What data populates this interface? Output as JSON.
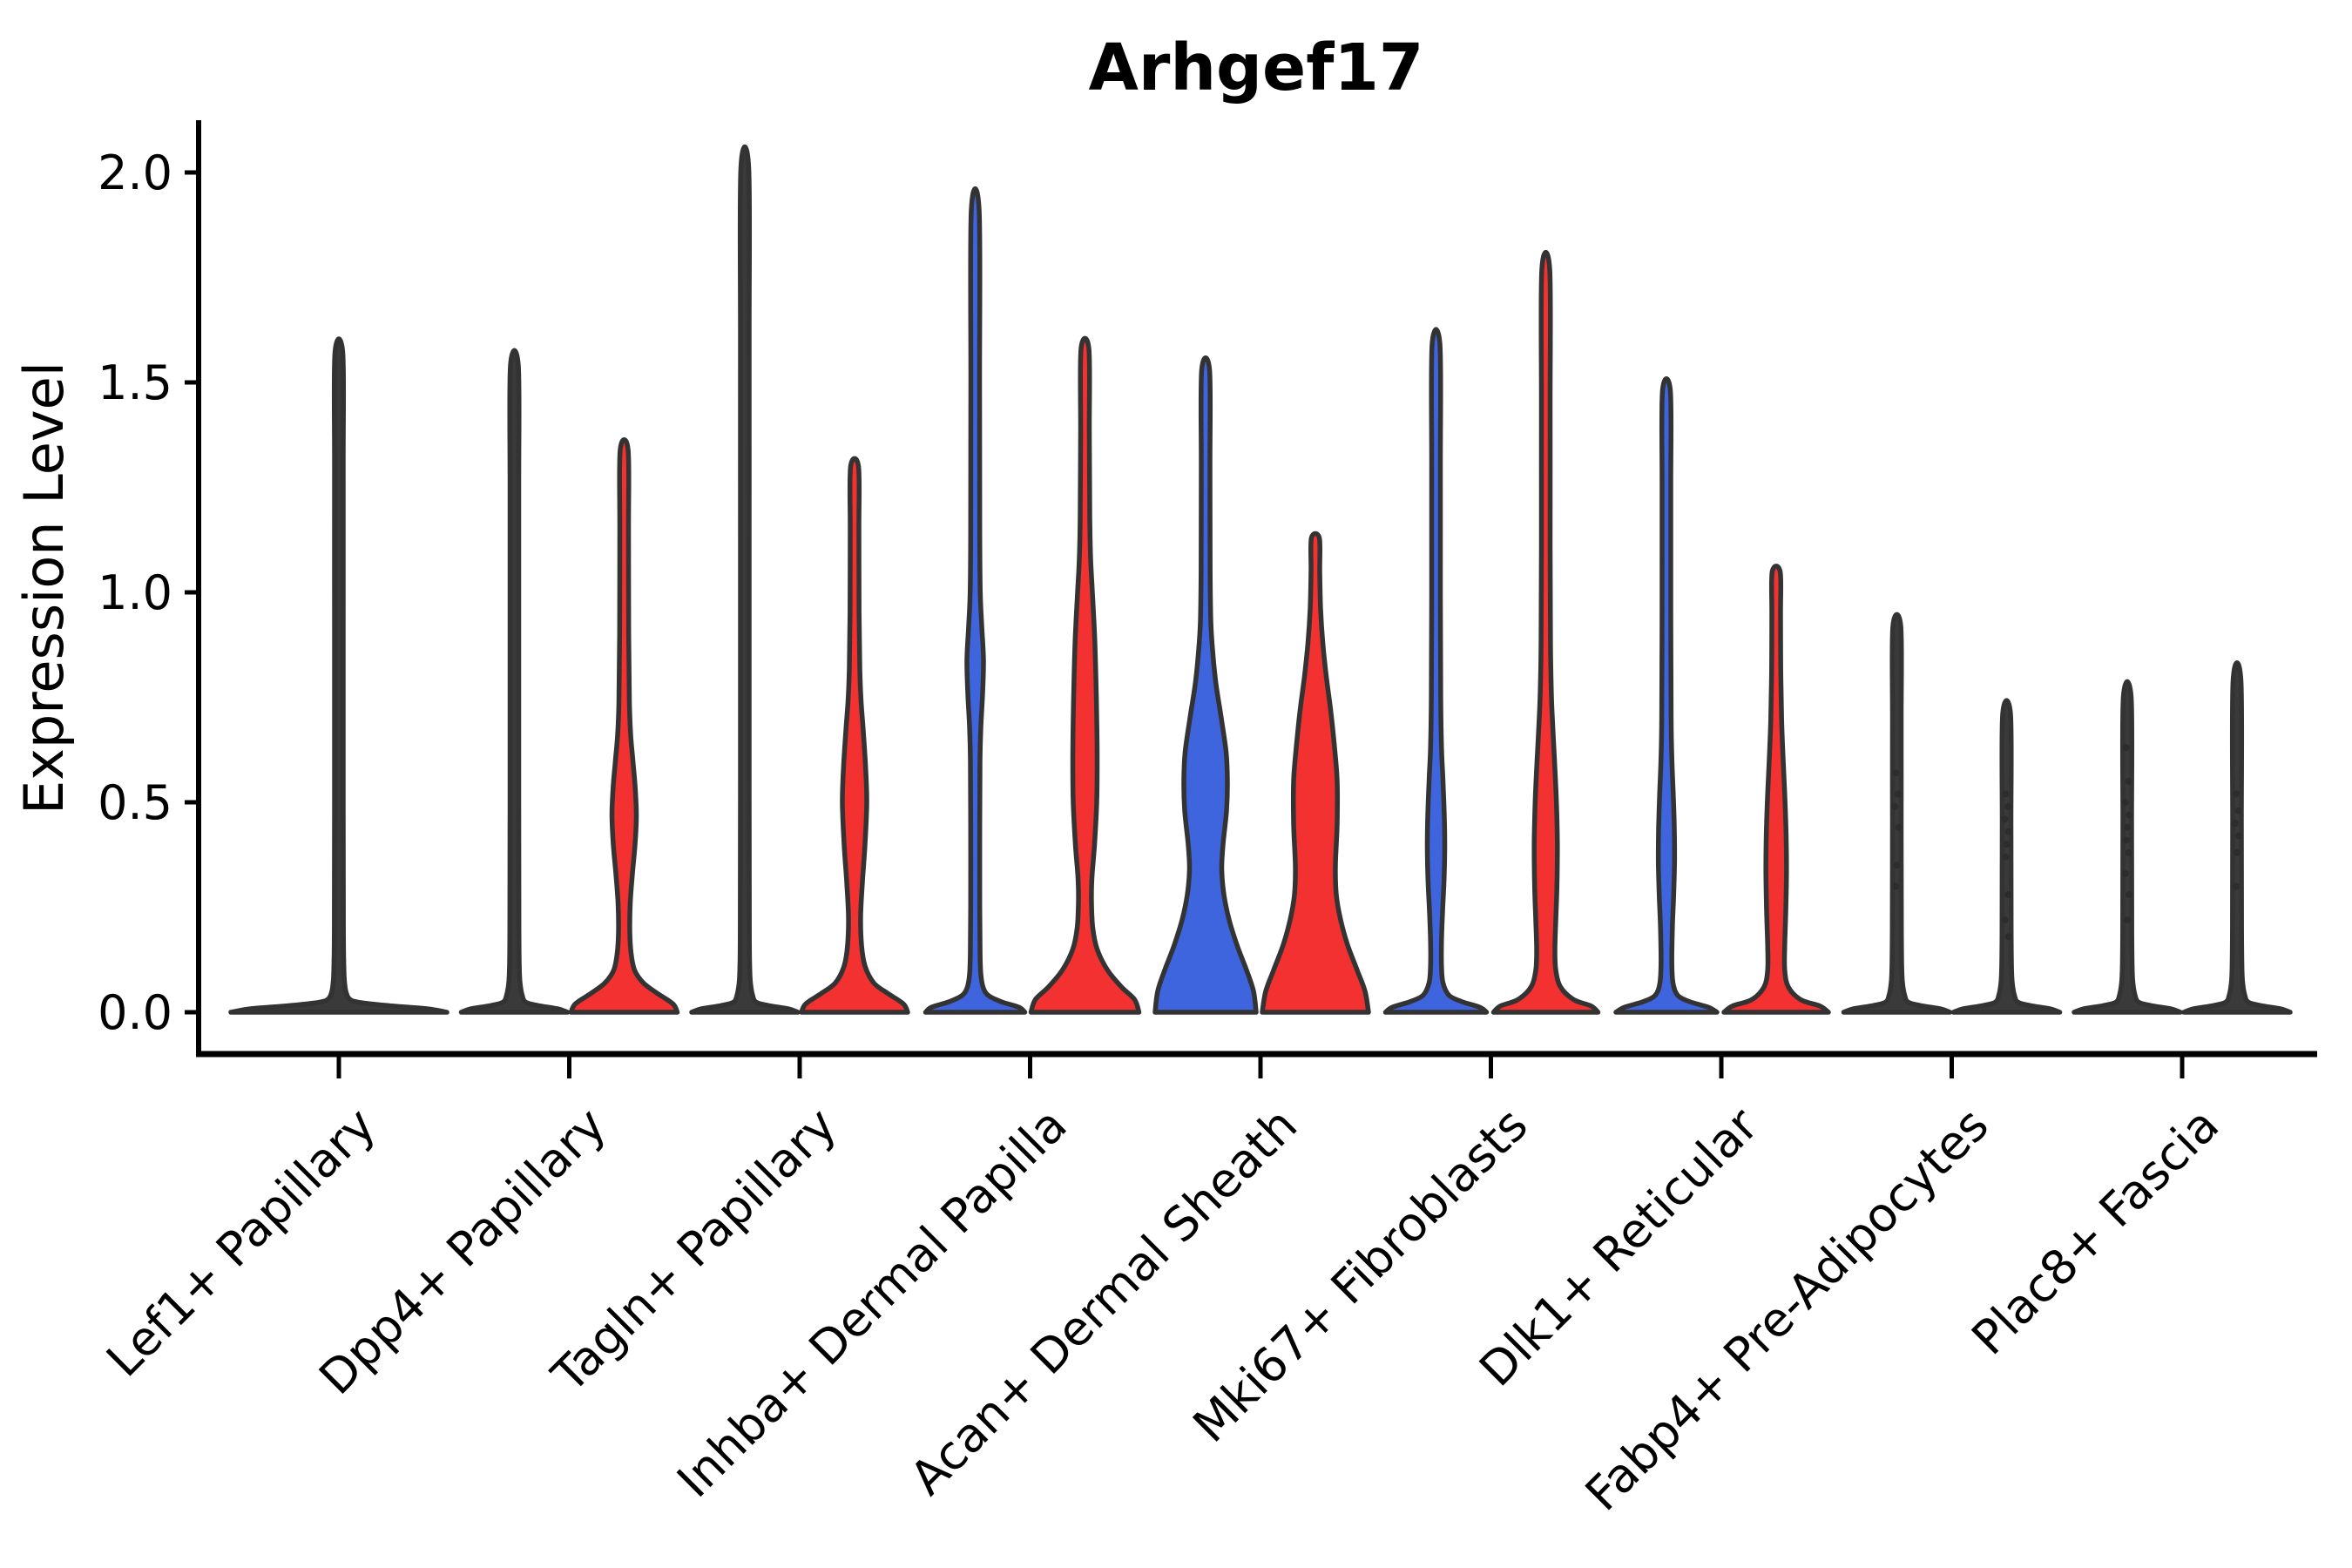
{
  "chart_data": {
    "type": "violin",
    "title": "Arhgef17",
    "xlabel": "",
    "ylabel": "Expression Level",
    "ylim": [
      0,
      2.13
    ],
    "yticks": [
      0.0,
      0.5,
      1.0,
      1.5,
      2.0
    ],
    "ytick_labels": [
      "0.0",
      "0.5",
      "1.0",
      "1.5",
      "2.0"
    ],
    "grid": false,
    "legend": null,
    "categories": [
      "Lef1+ Papillary",
      "Dpp4+ Papillary",
      "Tagln+ Papillary",
      "Inhba+ Dermal Papilla",
      "Acan+ Dermal Sheath",
      "Mki67+ Fibroblasts",
      "Dlk1+ Reticular",
      "Fabp4+ Pre-Adipocytes",
      "Plac8+ Fascia"
    ],
    "series": [
      {
        "name": "blue-split",
        "color": "#3E64DE"
      },
      {
        "name": "red-split",
        "color": "#F23130"
      }
    ],
    "colors": {
      "outline": "#333333",
      "collapsed_violin_fill": "#3a3a3a",
      "background": "#ffffff"
    },
    "violins": [
      {
        "category": 0,
        "split": null,
        "color": "#3a3a3a",
        "offset": 0,
        "max": 1.57,
        "profile": [
          [
            0,
            124
          ],
          [
            0.008,
            102
          ],
          [
            0.016,
            56
          ],
          [
            0.024,
            22
          ],
          [
            0.032,
            12
          ],
          [
            0.05,
            8
          ],
          [
            0.08,
            6.2
          ],
          [
            0.12,
            5.6
          ],
          [
            0.2,
            5.2
          ],
          [
            0.5,
            5
          ],
          [
            0.9,
            5
          ],
          [
            1.3,
            5
          ],
          [
            1.57,
            4.5
          ]
        ],
        "points": []
      },
      {
        "category": 1,
        "split": 0,
        "color": "#3a3a3a",
        "offset": -63,
        "max": 1.54,
        "profile": [
          [
            0,
            61
          ],
          [
            0.008,
            50
          ],
          [
            0.016,
            27
          ],
          [
            0.024,
            13
          ],
          [
            0.04,
            9
          ],
          [
            0.07,
            6.5
          ],
          [
            0.11,
            5.6
          ],
          [
            0.2,
            5.2
          ],
          [
            0.5,
            5
          ],
          [
            0.9,
            5
          ],
          [
            1.25,
            5
          ],
          [
            1.54,
            4.5
          ]
        ],
        "points": []
      },
      {
        "category": 1,
        "split": 1,
        "color": "#F23130",
        "offset": 63,
        "max": 1.34,
        "profile": [
          [
            0,
            61
          ],
          [
            0.02,
            56
          ],
          [
            0.045,
            38
          ],
          [
            0.07,
            22
          ],
          [
            0.1,
            12
          ],
          [
            0.14,
            8
          ],
          [
            0.19,
            6.5
          ],
          [
            0.26,
            7
          ],
          [
            0.33,
            9.5
          ],
          [
            0.4,
            12.5
          ],
          [
            0.47,
            14
          ],
          [
            0.54,
            12.5
          ],
          [
            0.6,
            10
          ],
          [
            0.66,
            7.5
          ],
          [
            0.74,
            6
          ],
          [
            0.9,
            5.2
          ],
          [
            1.15,
            5
          ],
          [
            1.34,
            4.5
          ]
        ],
        "points": []
      },
      {
        "category": 2,
        "split": 0,
        "color": "#3a3a3a",
        "offset": -63,
        "max": 2.01,
        "profile": [
          [
            0,
            61
          ],
          [
            0.008,
            50
          ],
          [
            0.016,
            27
          ],
          [
            0.024,
            13
          ],
          [
            0.04,
            9
          ],
          [
            0.07,
            6.5
          ],
          [
            0.11,
            5.6
          ],
          [
            0.2,
            5.2
          ],
          [
            0.6,
            5
          ],
          [
            1.1,
            5
          ],
          [
            1.6,
            5
          ],
          [
            2.01,
            4.5
          ]
        ],
        "points": []
      },
      {
        "category": 2,
        "split": 1,
        "color": "#F23130",
        "offset": 63,
        "max": 1.3,
        "profile": [
          [
            0,
            61
          ],
          [
            0.02,
            56
          ],
          [
            0.045,
            38
          ],
          [
            0.07,
            22
          ],
          [
            0.11,
            12
          ],
          [
            0.16,
            8
          ],
          [
            0.23,
            7
          ],
          [
            0.31,
            9
          ],
          [
            0.4,
            12
          ],
          [
            0.5,
            14
          ],
          [
            0.59,
            12.5
          ],
          [
            0.67,
            10
          ],
          [
            0.74,
            7.5
          ],
          [
            0.82,
            6
          ],
          [
            0.95,
            5.2
          ],
          [
            1.15,
            5
          ],
          [
            1.3,
            4.5
          ]
        ],
        "points": []
      },
      {
        "category": 3,
        "split": 0,
        "color": "#3E64DE",
        "offset": -63,
        "max": 1.91,
        "profile": [
          [
            0,
            57
          ],
          [
            0.012,
            50
          ],
          [
            0.025,
            30
          ],
          [
            0.04,
            15
          ],
          [
            0.06,
            9
          ],
          [
            0.09,
            6.5
          ],
          [
            0.14,
            5.6
          ],
          [
            0.25,
            5.2
          ],
          [
            0.45,
            5.2
          ],
          [
            0.6,
            5.5
          ],
          [
            0.68,
            6.5
          ],
          [
            0.76,
            8.5
          ],
          [
            0.84,
            9.5
          ],
          [
            0.92,
            7.5
          ],
          [
            1.0,
            5.8
          ],
          [
            1.15,
            5.2
          ],
          [
            1.5,
            5
          ],
          [
            1.91,
            4.5
          ]
        ],
        "points": []
      },
      {
        "category": 3,
        "split": 1,
        "color": "#F23130",
        "offset": 63,
        "max": 1.58,
        "profile": [
          [
            0,
            62
          ],
          [
            0.03,
            57
          ],
          [
            0.06,
            42
          ],
          [
            0.1,
            26
          ],
          [
            0.15,
            14
          ],
          [
            0.2,
            9
          ],
          [
            0.26,
            7.5
          ],
          [
            0.32,
            8
          ],
          [
            0.4,
            11
          ],
          [
            0.5,
            13.5
          ],
          [
            0.6,
            14
          ],
          [
            0.7,
            13.5
          ],
          [
            0.8,
            12.5
          ],
          [
            0.9,
            11
          ],
          [
            1.0,
            8.5
          ],
          [
            1.08,
            6.5
          ],
          [
            1.18,
            5.5
          ],
          [
            1.38,
            5
          ],
          [
            1.58,
            4.5
          ]
        ],
        "points": []
      },
      {
        "category": 4,
        "split": 0,
        "color": "#3E64DE",
        "offset": -63,
        "max": 1.53,
        "profile": [
          [
            0,
            58
          ],
          [
            0.05,
            55
          ],
          [
            0.1,
            47
          ],
          [
            0.16,
            36
          ],
          [
            0.22,
            27
          ],
          [
            0.28,
            21
          ],
          [
            0.34,
            18.5
          ],
          [
            0.4,
            20
          ],
          [
            0.48,
            24
          ],
          [
            0.55,
            25
          ],
          [
            0.62,
            23.5
          ],
          [
            0.7,
            18
          ],
          [
            0.78,
            12
          ],
          [
            0.85,
            8.5
          ],
          [
            0.93,
            6
          ],
          [
            1.05,
            5.2
          ],
          [
            1.3,
            5
          ],
          [
            1.53,
            4.5
          ]
        ],
        "points": []
      },
      {
        "category": 4,
        "split": 1,
        "color": "#F23130",
        "offset": 63,
        "max": 1.13,
        "profile": [
          [
            0,
            61
          ],
          [
            0.05,
            57
          ],
          [
            0.1,
            48
          ],
          [
            0.16,
            37
          ],
          [
            0.22,
            29
          ],
          [
            0.28,
            24
          ],
          [
            0.35,
            23
          ],
          [
            0.45,
            25
          ],
          [
            0.55,
            25
          ],
          [
            0.63,
            22
          ],
          [
            0.72,
            17.5
          ],
          [
            0.8,
            12.5
          ],
          [
            0.88,
            8.5
          ],
          [
            0.96,
            6
          ],
          [
            1.05,
            5
          ],
          [
            1.13,
            4.5
          ]
        ],
        "points": []
      },
      {
        "category": 5,
        "split": 0,
        "color": "#3E64DE",
        "offset": -63,
        "max": 1.59,
        "profile": [
          [
            0,
            58
          ],
          [
            0.012,
            50
          ],
          [
            0.025,
            30
          ],
          [
            0.04,
            15
          ],
          [
            0.07,
            8
          ],
          [
            0.11,
            6.3
          ],
          [
            0.17,
            6.3
          ],
          [
            0.24,
            7.5
          ],
          [
            0.32,
            9.3
          ],
          [
            0.4,
            10
          ],
          [
            0.48,
            9.3
          ],
          [
            0.56,
            7.8
          ],
          [
            0.63,
            6.3
          ],
          [
            0.75,
            5.4
          ],
          [
            1.0,
            5
          ],
          [
            1.3,
            5
          ],
          [
            1.59,
            4.5
          ]
        ],
        "points": []
      },
      {
        "category": 5,
        "split": 1,
        "color": "#F23130",
        "offset": 63,
        "max": 1.77,
        "profile": [
          [
            0,
            60
          ],
          [
            0.015,
            52
          ],
          [
            0.03,
            32
          ],
          [
            0.06,
            17
          ],
          [
            0.1,
            11.5
          ],
          [
            0.15,
            10.5
          ],
          [
            0.22,
            11.5
          ],
          [
            0.3,
            12.8
          ],
          [
            0.4,
            13.3
          ],
          [
            0.5,
            12.2
          ],
          [
            0.6,
            10
          ],
          [
            0.68,
            8
          ],
          [
            0.76,
            6.4
          ],
          [
            0.88,
            5.4
          ],
          [
            1.1,
            5
          ],
          [
            1.45,
            5
          ],
          [
            1.77,
            4.5
          ]
        ],
        "points": []
      },
      {
        "category": 6,
        "split": 0,
        "color": "#3E64DE",
        "offset": -63,
        "max": 1.48,
        "profile": [
          [
            0,
            58
          ],
          [
            0.012,
            48
          ],
          [
            0.025,
            27
          ],
          [
            0.04,
            13
          ],
          [
            0.07,
            7.5
          ],
          [
            0.12,
            6.2
          ],
          [
            0.2,
            6.8
          ],
          [
            0.28,
            8.3
          ],
          [
            0.36,
            9.3
          ],
          [
            0.44,
            9
          ],
          [
            0.52,
            7.8
          ],
          [
            0.6,
            6.3
          ],
          [
            0.7,
            5.4
          ],
          [
            0.95,
            5
          ],
          [
            1.25,
            5
          ],
          [
            1.48,
            4.5
          ]
        ],
        "points": []
      },
      {
        "category": 6,
        "split": 1,
        "color": "#F23130",
        "offset": 63,
        "max": 1.05,
        "profile": [
          [
            0,
            60
          ],
          [
            0.015,
            50
          ],
          [
            0.03,
            28
          ],
          [
            0.06,
            14
          ],
          [
            0.1,
            9.8
          ],
          [
            0.16,
            9.8
          ],
          [
            0.24,
            11
          ],
          [
            0.33,
            11.8
          ],
          [
            0.42,
            11.4
          ],
          [
            0.52,
            9.8
          ],
          [
            0.61,
            7.8
          ],
          [
            0.7,
            6.2
          ],
          [
            0.82,
            5.2
          ],
          [
            0.95,
            5
          ],
          [
            1.05,
            4.5
          ]
        ],
        "points": []
      },
      {
        "category": 7,
        "split": 0,
        "color": "#3a3a3a",
        "offset": -63,
        "max": 0.92,
        "profile": [
          [
            0,
            61
          ],
          [
            0.008,
            50
          ],
          [
            0.016,
            27
          ],
          [
            0.024,
            13
          ],
          [
            0.04,
            9
          ],
          [
            0.07,
            6.5
          ],
          [
            0.11,
            5.6
          ],
          [
            0.2,
            5.2
          ],
          [
            0.45,
            5
          ],
          [
            0.7,
            5
          ],
          [
            0.92,
            4.5
          ]
        ],
        "points": [
          0.57,
          0.52,
          0.49,
          0.44,
          0.35,
          0.3
        ]
      },
      {
        "category": 7,
        "split": 1,
        "color": "#3a3a3a",
        "offset": 63,
        "max": 0.71,
        "profile": [
          [
            0,
            61
          ],
          [
            0.008,
            50
          ],
          [
            0.016,
            27
          ],
          [
            0.024,
            13
          ],
          [
            0.04,
            9
          ],
          [
            0.07,
            6.5
          ],
          [
            0.11,
            5.6
          ],
          [
            0.2,
            5.2
          ],
          [
            0.45,
            5
          ],
          [
            0.71,
            4.5
          ]
        ],
        "points": [
          0.52,
          0.49,
          0.46,
          0.43,
          0.4,
          0.37,
          0.28,
          0.22,
          0.18
        ]
      },
      {
        "category": 8,
        "split": 0,
        "color": "#3a3a3a",
        "offset": -63,
        "max": 0.75,
        "profile": [
          [
            0,
            61
          ],
          [
            0.008,
            50
          ],
          [
            0.016,
            27
          ],
          [
            0.024,
            13
          ],
          [
            0.04,
            9
          ],
          [
            0.07,
            6.5
          ],
          [
            0.11,
            5.6
          ],
          [
            0.2,
            5.2
          ],
          [
            0.45,
            5
          ],
          [
            0.75,
            4.5
          ]
        ],
        "points": [
          0.63,
          0.55,
          0.5,
          0.47,
          0.44,
          0.41,
          0.38,
          0.33,
          0.28,
          0.22
        ]
      },
      {
        "category": 8,
        "split": 1,
        "color": "#3a3a3a",
        "offset": 63,
        "max": 0.79,
        "profile": [
          [
            0,
            61
          ],
          [
            0.008,
            50
          ],
          [
            0.016,
            27
          ],
          [
            0.024,
            13
          ],
          [
            0.04,
            9
          ],
          [
            0.07,
            6.5
          ],
          [
            0.11,
            5.6
          ],
          [
            0.2,
            5.2
          ],
          [
            0.45,
            5
          ],
          [
            0.79,
            4.5
          ]
        ],
        "points": [
          0.52,
          0.48,
          0.45,
          0.42,
          0.38,
          0.3
        ]
      }
    ]
  }
}
